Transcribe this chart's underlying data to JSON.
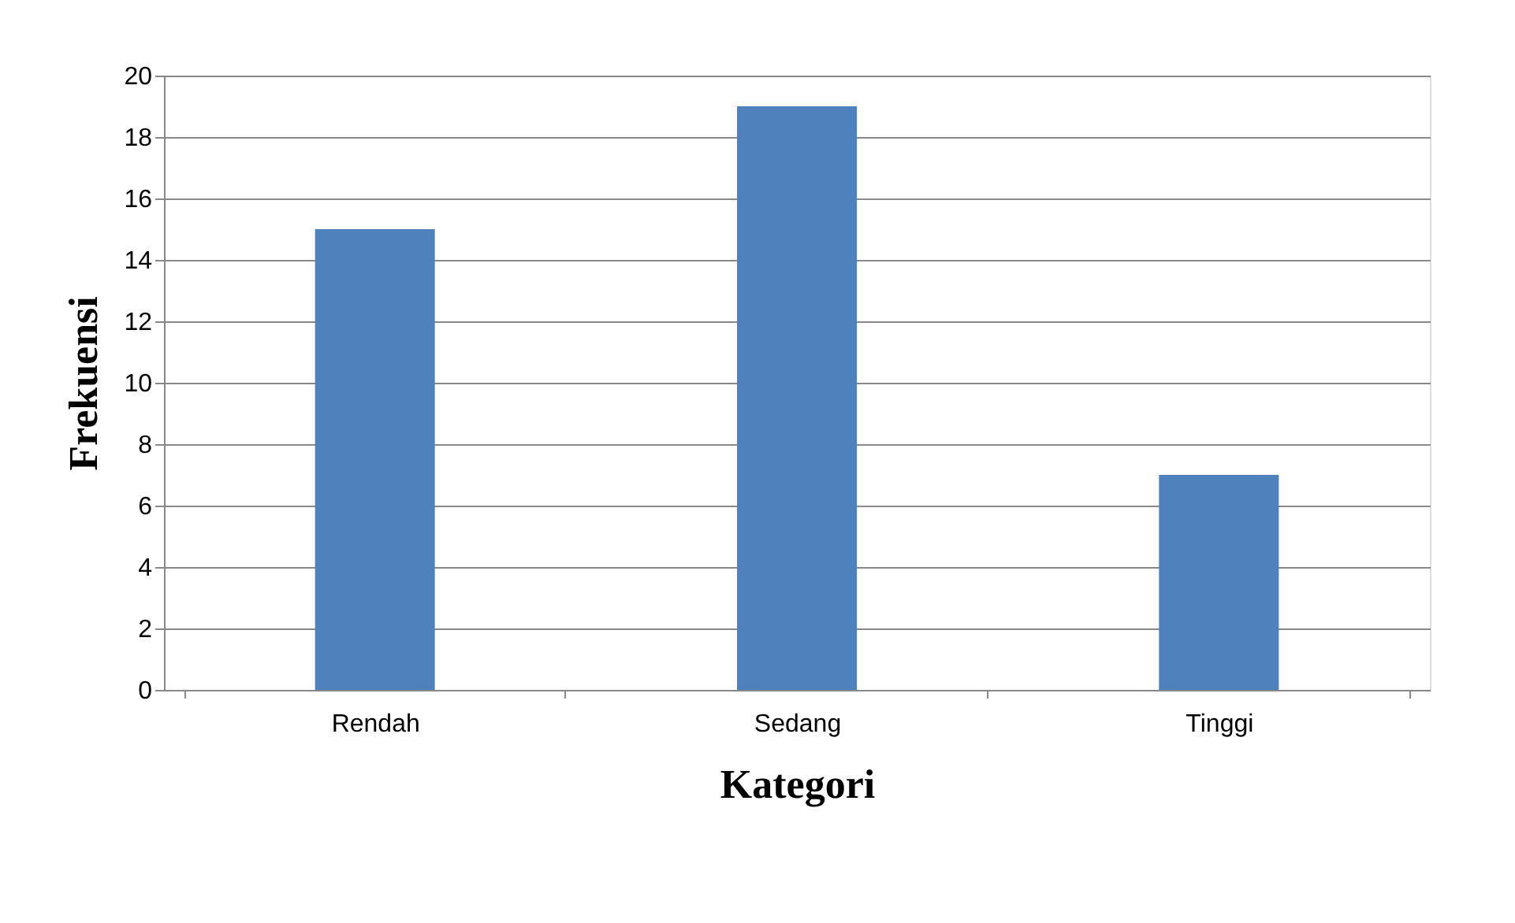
{
  "chart_data": {
    "type": "bar",
    "xlabel": "Kategori",
    "ylabel": "Frekuensi",
    "categories": [
      "Rendah",
      "Sedang",
      "Tinggi"
    ],
    "series": [
      {
        "color": "#4f81bd",
        "values": [
          15,
          19,
          7
        ]
      }
    ],
    "ylim": [
      0,
      20
    ],
    "yticks": [
      0,
      2,
      4,
      6,
      8,
      10,
      12,
      14,
      16,
      18,
      20
    ],
    "grid": "y",
    "legend": false
  }
}
